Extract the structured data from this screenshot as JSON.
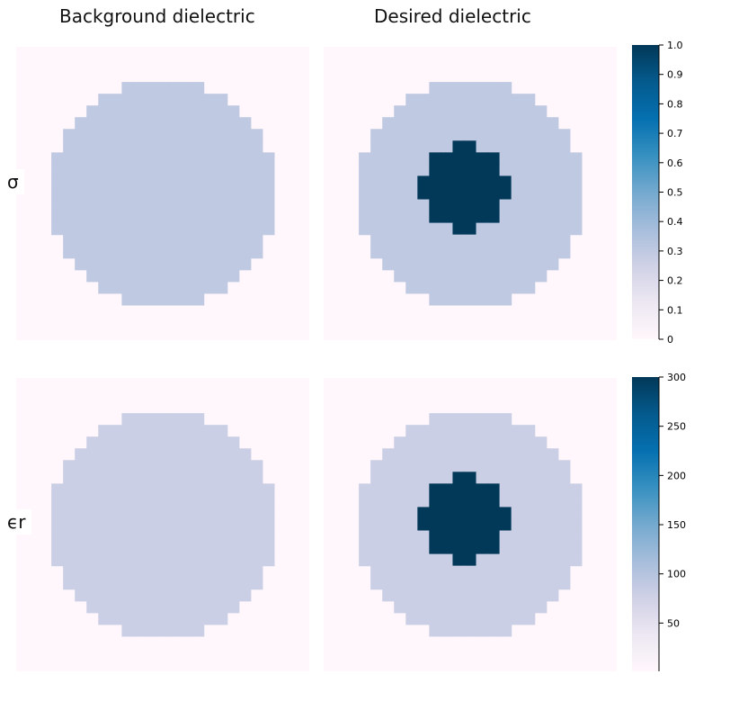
{
  "chart_data": {
    "type": "heatmap",
    "column_titles": [
      "Background dielectric",
      "Desired dielectric"
    ],
    "row_labels": [
      "σ",
      "ϵr"
    ],
    "grid_size": [
      25,
      25
    ],
    "circle": {
      "center": [
        12.5,
        12.5
      ],
      "radius": 9.5
    },
    "inclusion": {
      "center": [
        12,
        12
      ],
      "radius": 3.6
    },
    "rows": [
      {
        "label": "σ",
        "colorbar": {
          "range": [
            0,
            1.0
          ],
          "ticks": [
            "0",
            "0.1",
            "0.2",
            "0.3",
            "0.4",
            "0.5",
            "0.6",
            "0.7",
            "0.8",
            "0.9",
            "1.0"
          ],
          "tick_values": [
            0,
            0.1,
            0.2,
            0.3,
            0.4,
            0.5,
            0.6,
            0.7,
            0.8,
            0.9,
            1.0
          ]
        },
        "values": {
          "outside": 0.0,
          "background": 0.3,
          "inclusion": 1.0
        }
      },
      {
        "label": "ϵr",
        "colorbar": {
          "range": [
            1,
            300
          ],
          "ticks": [
            "50",
            "100",
            "150",
            "200",
            "250",
            "300"
          ],
          "tick_values": [
            50,
            100,
            150,
            200,
            250,
            300
          ]
        },
        "values": {
          "outside": 1,
          "background": 80,
          "inclusion": 300
        }
      }
    ],
    "colormap": "PuBu",
    "colormap_stops": [
      "#fff7fb",
      "#ece7f2",
      "#d0d1e6",
      "#a6bddb",
      "#74a9cf",
      "#3690c0",
      "#0570b0",
      "#045a8d",
      "#023858"
    ]
  }
}
